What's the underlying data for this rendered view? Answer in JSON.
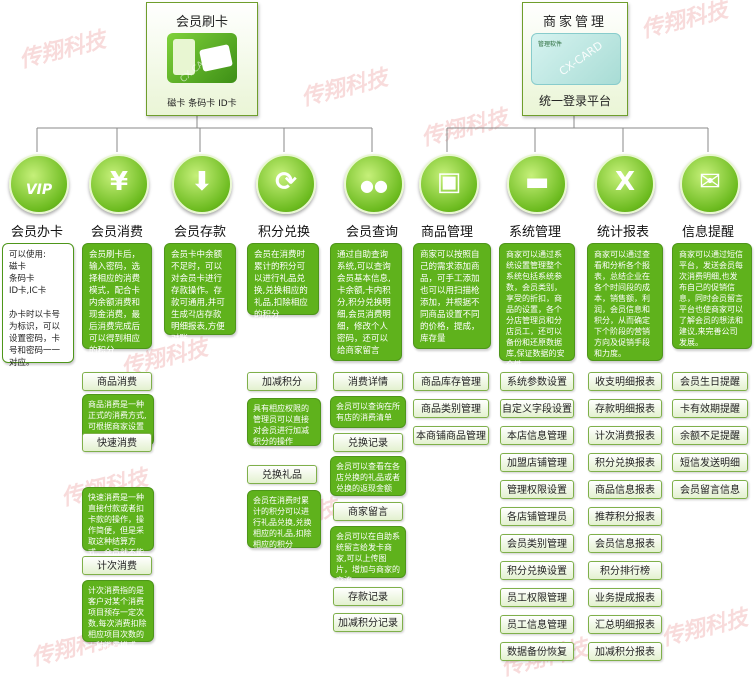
{
  "watermark": "传翔科技",
  "top": {
    "left": {
      "title": "会员刷卡",
      "subtitle": "磁卡 条码卡 ID卡",
      "card_text": "CX CARD"
    },
    "right": {
      "title": "商家管理",
      "subtitle": "统一登录平台",
      "card_text": "CX-CARD",
      "card_label": "管理软件"
    }
  },
  "columns": [
    {
      "label": "会员办卡",
      "icon": "vip-icon",
      "icon_text": "VIP",
      "desc": "可以使用:\n磁卡\n条码卡\nID卡,IC卡\n\n办卡时以卡号为标识，可以设置密码，卡号和密码一一对应。",
      "subs": []
    },
    {
      "label": "会员消费",
      "icon": "yen-icon",
      "icon_text": "¥",
      "desc": "会员刷卡后，输入密码，选择相应的消费模式，配合卡内余额消费和现金消费，最后消费完成后可以得到相应的积分",
      "subs": [
        {
          "label": "商品消费",
          "desc": "商品消费是一种正式的消费方式,可根据商家设置的商品的折扣和积分,给会员结算"
        },
        {
          "label": "快速消费",
          "desc": "快速消费是一种直接付款或者扣卡款的操作，操作简便，但是采取这种结算方式，会员就不能享受相应折扣"
        },
        {
          "label": "计次消费",
          "desc": "计次消费指的是客户对某个消费项目预存一定次数,每次消费扣除相应项目次数的一种消费模式"
        }
      ]
    },
    {
      "label": "会员存款",
      "icon": "download-icon",
      "icon_text": "⬇",
      "desc": "会员卡中余额不足时，可以对会员卡进行存款操作。存款可通用,并可生成각店存款明细报表,方便对账。",
      "subs": []
    },
    {
      "label": "积分兑换",
      "icon": "refresh-icon",
      "icon_text": "⟳",
      "desc": "会员在消费时累计的积分可以进行礼品兑换,兑换相应的礼品,扣除相应的积分",
      "subs": [
        {
          "label": "加减积分",
          "desc": "具有相应权限的管理员可以直接对会员进行加减积分的操作"
        },
        {
          "label": "兑换礼品",
          "desc": "会员在消费时累计的积分可以进行礼品兑换,兑换相应的礼品,扣除相应的积分"
        }
      ]
    },
    {
      "label": "会员查询",
      "icon": "people-icon",
      "icon_text": "●●",
      "desc": "通过自助查询系统,可以查询会员基本信息,卡余额,卡内积分,积分兑换明细,会员消费明细，修改个人密码，还可以给商家留言",
      "subs": [
        {
          "label": "消费详情",
          "desc": "会员可以查询在所有店的消费清单"
        },
        {
          "label": "兑换记录",
          "desc": "会员可以查看在各店兑换的礼品或者兑换的返现金额"
        },
        {
          "label": "商家留言",
          "desc": "会员可以在自助系统留言给发卡商家,可以上传图片，增加与商家的交流"
        },
        {
          "label": "存款记录",
          "desc": ""
        },
        {
          "label": "加减积分记录",
          "desc": ""
        }
      ]
    },
    {
      "label": "商品管理",
      "icon": "box-icon",
      "icon_text": "▣",
      "desc": "商家可以按照自己的需求添加商品，可手工添加也可以用扫描枪添加，并根据不同商品设置不同的价格，提成，库存量",
      "subs": [
        {
          "label": "商品库存管理"
        },
        {
          "label": "商品类别管理"
        },
        {
          "label": "本商铺商品管理"
        }
      ]
    },
    {
      "label": "系统管理",
      "icon": "folder-icon",
      "icon_text": "▬",
      "desc": "商家可以通过系统设置管理整个系统包括系统参数，会员类别，享受的折扣，商品的设置，各个分店管理员和分店员工，还可以备份和还原数据库,保证数据的安全性",
      "subs": [
        {
          "label": "系统参数设置"
        },
        {
          "label": "自定义字段设置"
        },
        {
          "label": "本店信息管理"
        },
        {
          "label": "加盟店铺管理"
        },
        {
          "label": "管理权限设置"
        },
        {
          "label": "各店铺管理员"
        },
        {
          "label": "会员类别管理"
        },
        {
          "label": "积分兑换设置"
        },
        {
          "label": "员工权限管理"
        },
        {
          "label": "员工信息管理"
        },
        {
          "label": "数据备份恢复"
        }
      ]
    },
    {
      "label": "统计报表",
      "icon": "excel-icon",
      "icon_text": "X",
      "desc": "商家可以通过查看和分析各个报表，总结企业在各个时间段的成本，销售额，利润，会员信息和积分，从而确定下个阶段的营销方向及促销手段和力度。",
      "subs": [
        {
          "label": "收支明细报表"
        },
        {
          "label": "存款明细报表"
        },
        {
          "label": "计次消费报表"
        },
        {
          "label": "积分兑换报表"
        },
        {
          "label": "商品信息报表"
        },
        {
          "label": "推荐积分报表"
        },
        {
          "label": "会员信息报表"
        },
        {
          "label": "积分排行榜"
        },
        {
          "label": "业务提成报表"
        },
        {
          "label": "汇总明细报表"
        },
        {
          "label": "加减积分报表"
        }
      ]
    },
    {
      "label": "信息提醒",
      "icon": "mail-icon",
      "icon_text": "✉",
      "desc": "商家可以通过短信平台，发送会员每次消费明细,也发布自己的促销信息，同时会员留言平台也使商家可以了解会员的想法和建议,来完善公司发展。",
      "subs": [
        {
          "label": "会员生日提醒"
        },
        {
          "label": "卡有效期提醒"
        },
        {
          "label": "余额不足提醒"
        },
        {
          "label": "短信发送明细"
        },
        {
          "label": "会员留言信息"
        }
      ]
    }
  ]
}
